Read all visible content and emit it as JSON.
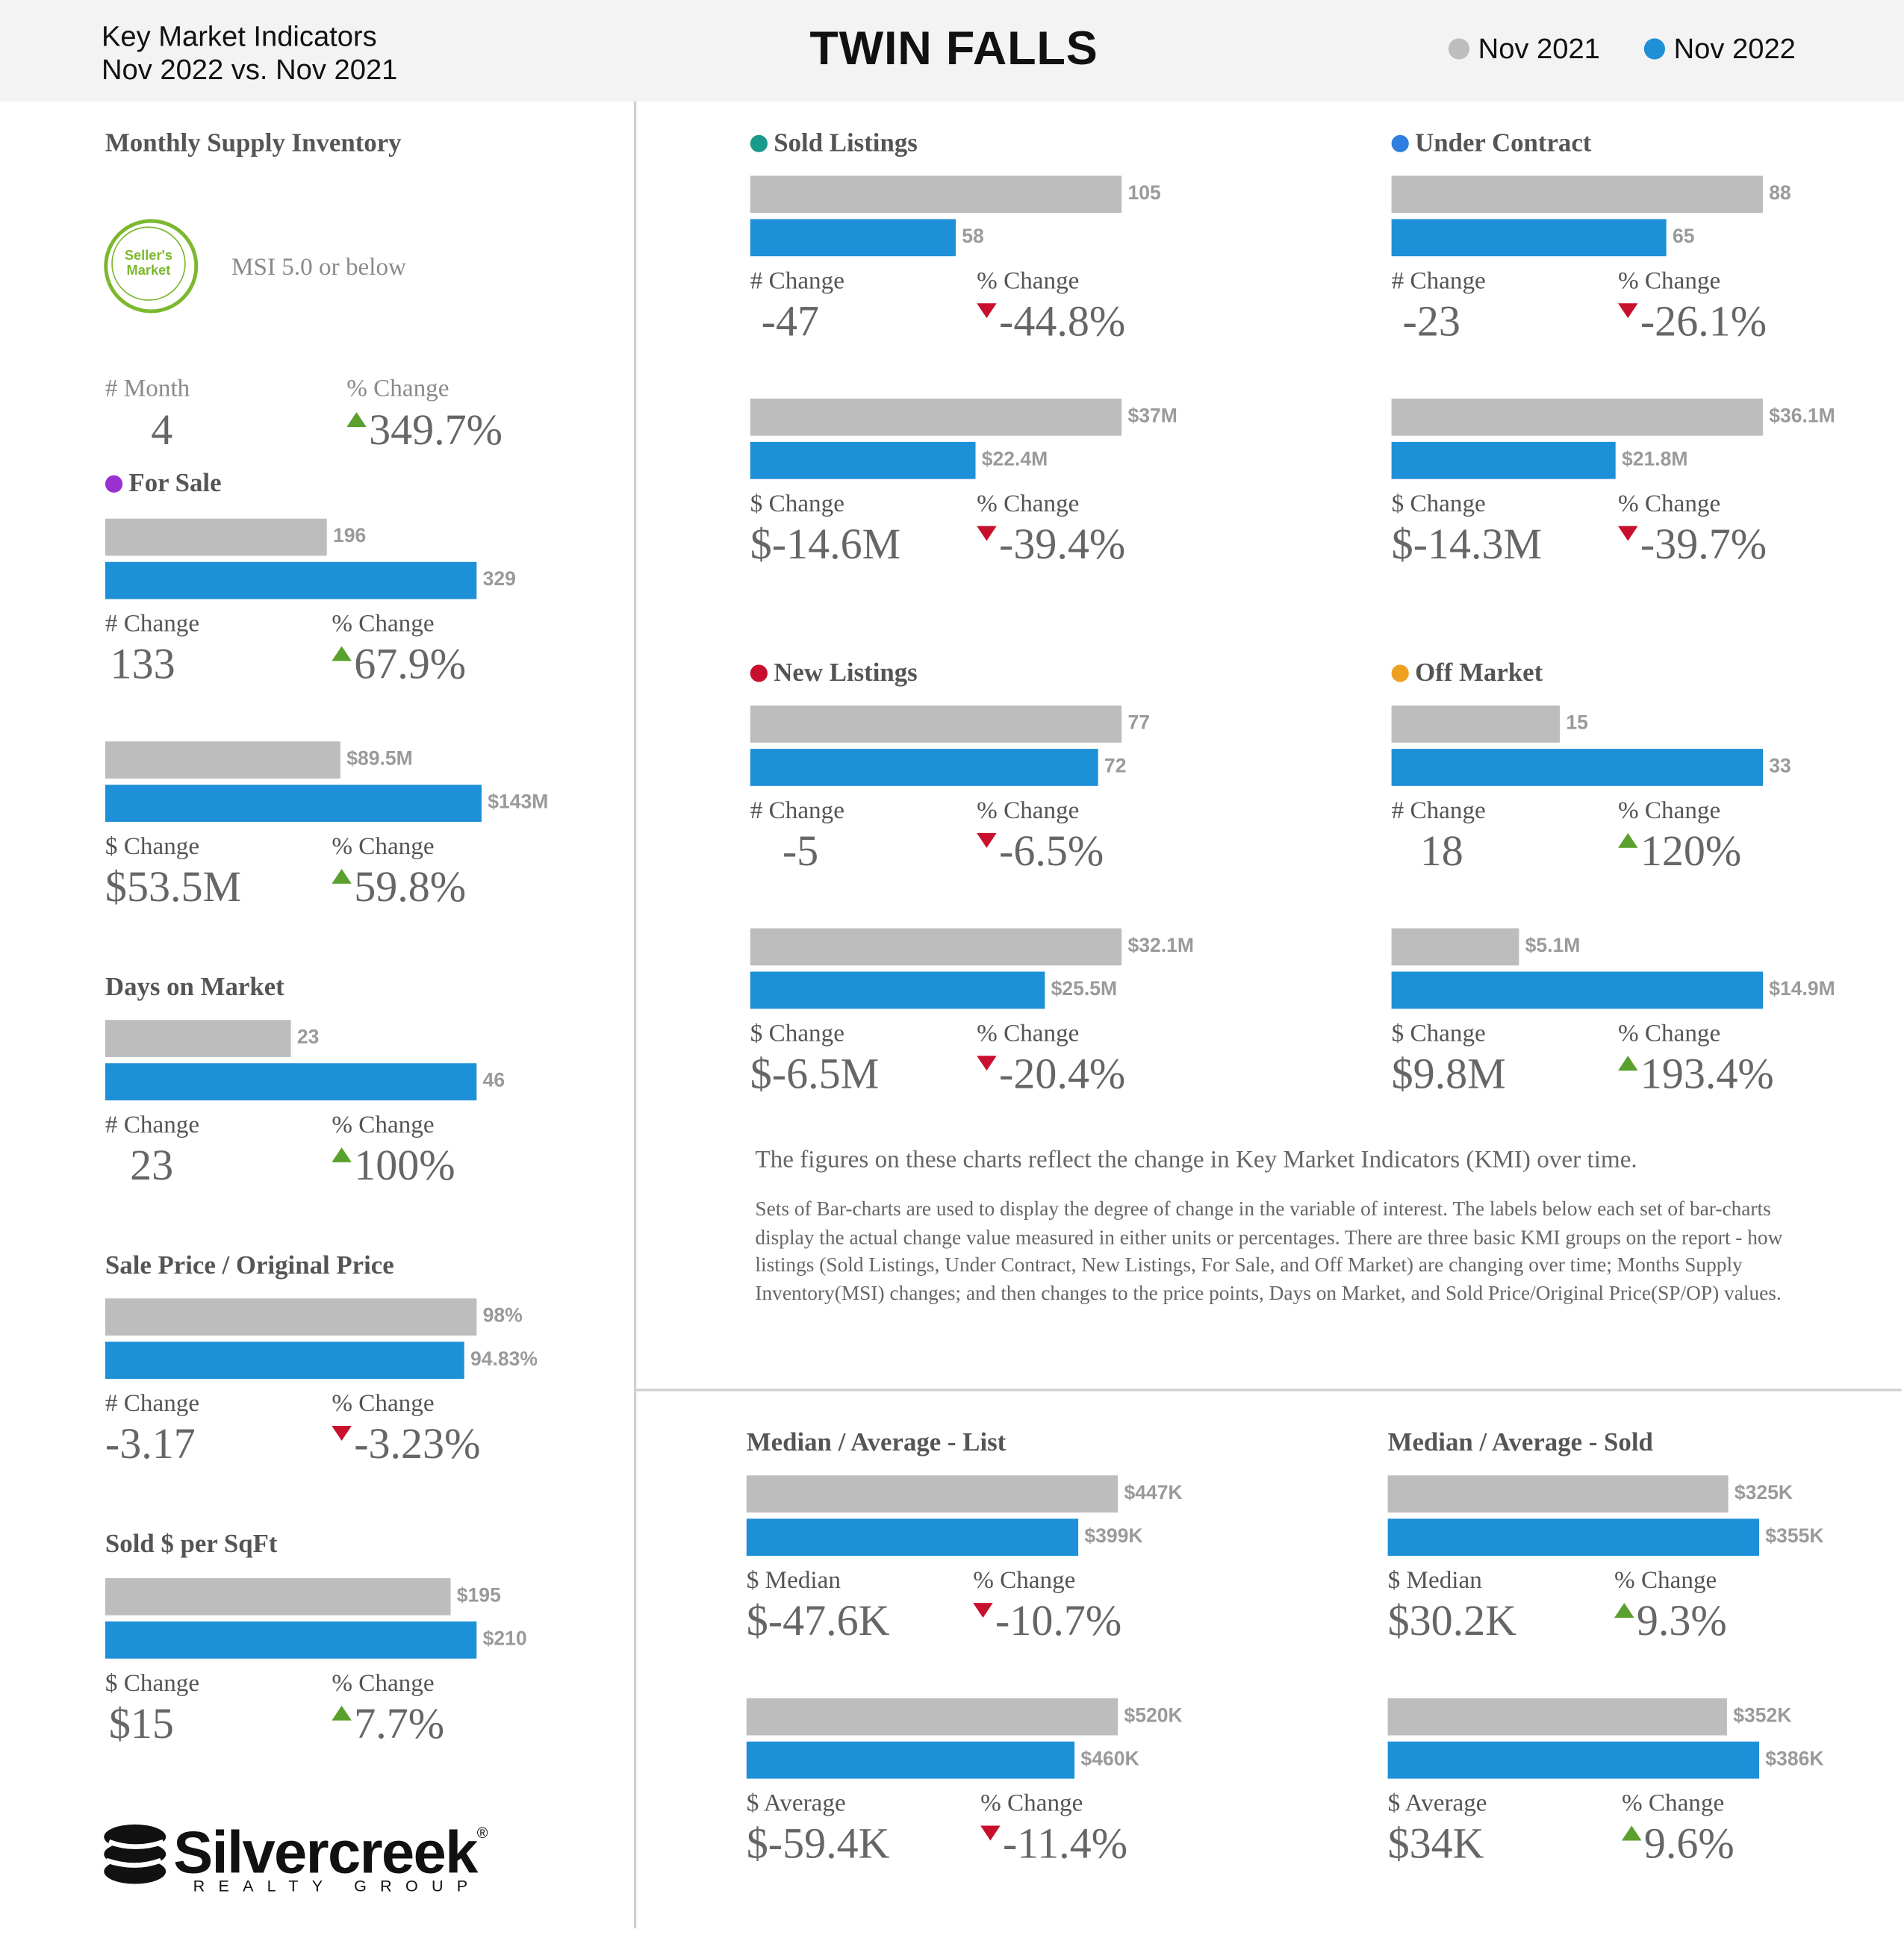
{
  "header": {
    "subtitle_line1": "Key Market Indicators",
    "subtitle_line2": "Nov 2022 vs. Nov 2021",
    "title": "TWIN FALLS",
    "legend": [
      {
        "label": "Nov 2021",
        "color": "#bdbdbd"
      },
      {
        "label": "Nov 2022",
        "color": "#1e90d8"
      }
    ]
  },
  "msi": {
    "title": "Monthly Supply Inventory",
    "badge_text": "Seller's Market",
    "note": "MSI 5.0 or below",
    "month_label": "# Month",
    "month_value": "4",
    "pct_label": "% Change",
    "pct_value": "349.7%",
    "pct_dir": "up"
  },
  "description": {
    "line1": "The figures on these charts reflect the change in Key Market Indicators (KMI) over time.",
    "line2": "Sets of Bar-charts are used to display the degree of change in the variable of interest. The labels below each set of bar-charts display the actual change value measured in either units or percentages. There are three basic KMI groups on the report - how listings (Sold Listings, Under Contract, New Listings, For Sale, and Off Market) are changing over time; Months Supply Inventory(MSI) changes; and then changes to the price points, Days on Market, and Sold Price/Original Price(SP/OP) values."
  },
  "logo": {
    "word": "Silvercreek",
    "registered": "®",
    "sub": "REALTY GROUP"
  },
  "colors": {
    "nov2021": "#bdbdbd",
    "nov2022": "#1e90d8",
    "up": "#5aa02c",
    "down": "#c8102e"
  },
  "chart_data": [
    {
      "type": "bar",
      "title": "For Sale",
      "title_dot": "#9b30d0",
      "series": [
        {
          "name": "Nov 2021",
          "values": [
            196
          ]
        },
        {
          "name": "Nov 2022",
          "values": [
            329
          ]
        }
      ],
      "value_labels": [
        "196",
        "329"
      ],
      "change_label": "# Change",
      "change_value": "133",
      "pct_label": "% Change",
      "pct_value": "67.9%",
      "pct_dir": "up"
    },
    {
      "type": "bar",
      "title": "",
      "series": [
        {
          "name": "Nov 2021",
          "values": [
            89.5
          ]
        },
        {
          "name": "Nov 2022",
          "values": [
            143
          ]
        }
      ],
      "unit": "$M",
      "value_labels": [
        "$89.5M",
        "$143M"
      ],
      "change_label": "$ Change",
      "change_value": "$53.5M",
      "pct_label": "% Change",
      "pct_value": "59.8%",
      "pct_dir": "up"
    },
    {
      "type": "bar",
      "title": "Days on Market",
      "series": [
        {
          "name": "Nov 2021",
          "values": [
            23
          ]
        },
        {
          "name": "Nov 2022",
          "values": [
            46
          ]
        }
      ],
      "value_labels": [
        "23",
        "46"
      ],
      "change_label": "# Change",
      "change_value": "23",
      "pct_label": "% Change",
      "pct_value": "100%",
      "pct_dir": "up"
    },
    {
      "type": "bar",
      "title": "Sale Price / Original Price",
      "series": [
        {
          "name": "Nov 2021",
          "values": [
            98
          ]
        },
        {
          "name": "Nov 2022",
          "values": [
            94.83
          ]
        }
      ],
      "unit": "%",
      "value_labels": [
        "98%",
        "94.83%"
      ],
      "change_label": "# Change",
      "change_value": "-3.17",
      "pct_label": "% Change",
      "pct_value": "-3.23%",
      "pct_dir": "down"
    },
    {
      "type": "bar",
      "title": "Sold $ per SqFt",
      "series": [
        {
          "name": "Nov 2021",
          "values": [
            195
          ]
        },
        {
          "name": "Nov 2022",
          "values": [
            210
          ]
        }
      ],
      "unit": "$",
      "value_labels": [
        "$195",
        "$210"
      ],
      "change_label": "$ Change",
      "change_value": "$15",
      "pct_label": "% Change",
      "pct_value": "7.7%",
      "pct_dir": "up"
    },
    {
      "type": "bar",
      "title": "Sold Listings",
      "title_dot": "#1a9a8a",
      "series": [
        {
          "name": "Nov 2021",
          "values": [
            105
          ]
        },
        {
          "name": "Nov 2022",
          "values": [
            58
          ]
        }
      ],
      "value_labels": [
        "105",
        "58"
      ],
      "change_label": "# Change",
      "change_value": "-47",
      "pct_label": "% Change",
      "pct_value": "-44.8%",
      "pct_dir": "down"
    },
    {
      "type": "bar",
      "title": "",
      "series": [
        {
          "name": "Nov 2021",
          "values": [
            37
          ]
        },
        {
          "name": "Nov 2022",
          "values": [
            22.4
          ]
        }
      ],
      "unit": "$M",
      "value_labels": [
        "$37M",
        "$22.4M"
      ],
      "change_label": "$ Change",
      "change_value": "$-14.6M",
      "pct_label": "% Change",
      "pct_value": "-39.4%",
      "pct_dir": "down"
    },
    {
      "type": "bar",
      "title": "Under Contract",
      "title_dot": "#2f7fe0",
      "series": [
        {
          "name": "Nov 2021",
          "values": [
            88
          ]
        },
        {
          "name": "Nov 2022",
          "values": [
            65
          ]
        }
      ],
      "value_labels": [
        "88",
        "65"
      ],
      "change_label": "# Change",
      "change_value": "-23",
      "pct_label": "% Change",
      "pct_value": "-26.1%",
      "pct_dir": "down"
    },
    {
      "type": "bar",
      "title": "",
      "series": [
        {
          "name": "Nov 2021",
          "values": [
            36.1
          ]
        },
        {
          "name": "Nov 2022",
          "values": [
            21.8
          ]
        }
      ],
      "unit": "$M",
      "value_labels": [
        "$36.1M",
        "$21.8M"
      ],
      "change_label": "$ Change",
      "change_value": "$-14.3M",
      "pct_label": "% Change",
      "pct_value": "-39.7%",
      "pct_dir": "down"
    },
    {
      "type": "bar",
      "title": "New Listings",
      "title_dot": "#c8102e",
      "series": [
        {
          "name": "Nov 2021",
          "values": [
            77
          ]
        },
        {
          "name": "Nov 2022",
          "values": [
            72
          ]
        }
      ],
      "value_labels": [
        "77",
        "72"
      ],
      "change_label": "# Change",
      "change_value": "-5",
      "pct_label": "% Change",
      "pct_value": "-6.5%",
      "pct_dir": "down"
    },
    {
      "type": "bar",
      "title": "",
      "series": [
        {
          "name": "Nov 2021",
          "values": [
            32.1
          ]
        },
        {
          "name": "Nov 2022",
          "values": [
            25.5
          ]
        }
      ],
      "unit": "$M",
      "value_labels": [
        "$32.1M",
        "$25.5M"
      ],
      "change_label": "$ Change",
      "change_value": "$-6.5M",
      "pct_label": "% Change",
      "pct_value": "-20.4%",
      "pct_dir": "down"
    },
    {
      "type": "bar",
      "title": "Off Market",
      "title_dot": "#f0a020",
      "series": [
        {
          "name": "Nov 2021",
          "values": [
            15
          ]
        },
        {
          "name": "Nov 2022",
          "values": [
            33
          ]
        }
      ],
      "value_labels": [
        "15",
        "33"
      ],
      "change_label": "# Change",
      "change_value": "18",
      "pct_label": "% Change",
      "pct_value": "120%",
      "pct_dir": "up"
    },
    {
      "type": "bar",
      "title": "",
      "series": [
        {
          "name": "Nov 2021",
          "values": [
            5.1
          ]
        },
        {
          "name": "Nov 2022",
          "values": [
            14.9
          ]
        }
      ],
      "unit": "$M",
      "value_labels": [
        "$5.1M",
        "$14.9M"
      ],
      "change_label": "$ Change",
      "change_value": "$9.8M",
      "pct_label": "% Change",
      "pct_value": "193.4%",
      "pct_dir": "up"
    },
    {
      "type": "bar",
      "title": "Median / Average - List",
      "series": [
        {
          "name": "Nov 2021",
          "values": [
            447
          ]
        },
        {
          "name": "Nov 2022",
          "values": [
            399
          ]
        }
      ],
      "unit": "$K",
      "value_labels": [
        "$447K",
        "$399K"
      ],
      "change_label": "$ Median",
      "change_value": "$-47.6K",
      "pct_label": "% Change",
      "pct_value": "-10.7%",
      "pct_dir": "down"
    },
    {
      "type": "bar",
      "title": "",
      "series": [
        {
          "name": "Nov 2021",
          "values": [
            520
          ]
        },
        {
          "name": "Nov 2022",
          "values": [
            460
          ]
        }
      ],
      "unit": "$K",
      "value_labels": [
        "$520K",
        "$460K"
      ],
      "change_label": "$ Average",
      "change_value": "$-59.4K",
      "pct_label": "% Change",
      "pct_value": "-11.4%",
      "pct_dir": "down"
    },
    {
      "type": "bar",
      "title": "Median / Average - Sold",
      "series": [
        {
          "name": "Nov 2021",
          "values": [
            325
          ]
        },
        {
          "name": "Nov 2022",
          "values": [
            355
          ]
        }
      ],
      "unit": "$K",
      "value_labels": [
        "$325K",
        "$355K"
      ],
      "change_label": "$ Median",
      "change_value": "$30.2K",
      "pct_label": "% Change",
      "pct_value": "9.3%",
      "pct_dir": "up"
    },
    {
      "type": "bar",
      "title": "",
      "series": [
        {
          "name": "Nov 2021",
          "values": [
            352
          ]
        },
        {
          "name": "Nov 2022",
          "values": [
            386
          ]
        }
      ],
      "unit": "$K",
      "value_labels": [
        "$352K",
        "$386K"
      ],
      "change_label": "$ Average",
      "change_value": "$34K",
      "pct_label": "% Change",
      "pct_value": "9.6%",
      "pct_dir": "up"
    }
  ]
}
